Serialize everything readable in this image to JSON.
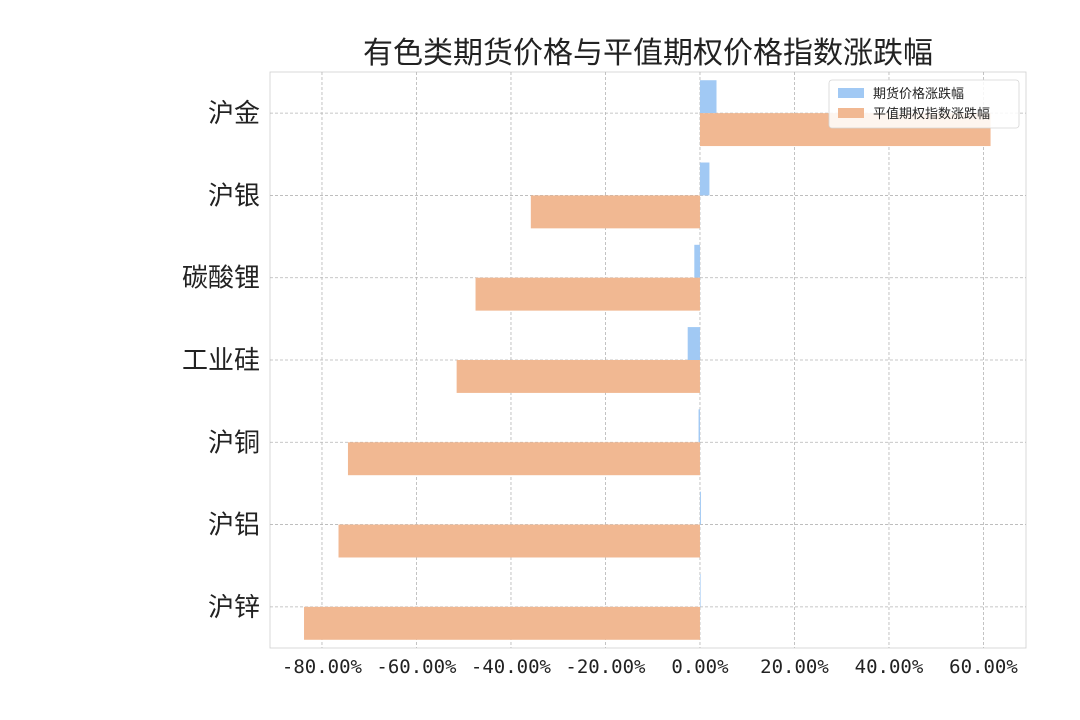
{
  "chart_data": {
    "type": "bar",
    "orientation": "horizontal",
    "title": "有色类期货价格与平值期权价格指数涨跌幅",
    "xlabel": "",
    "ylabel": "",
    "categories": [
      "沪金",
      "沪银",
      "碳酸锂",
      "工业硅",
      "沪铜",
      "沪铝",
      "沪锌"
    ],
    "series": [
      {
        "name": "期货价格涨跌幅",
        "color": "#a1c9f4",
        "values": [
          3.5,
          2.0,
          -1.2,
          -2.6,
          -0.3,
          0.2,
          0.1
        ]
      },
      {
        "name": "平值期权指数涨跌幅",
        "color": "#f1b892",
        "values": [
          61.5,
          -35.8,
          -47.5,
          -51.5,
          -74.5,
          -76.5,
          -83.8
        ]
      }
    ],
    "xlim": [
      -91,
      69
    ],
    "xticks": [
      -80,
      -60,
      -40,
      -20,
      0,
      20,
      40,
      60
    ],
    "xtick_labels": [
      "-80.00%",
      "-60.00%",
      "-40.00%",
      "-20.00%",
      "0.00%",
      "20.00%",
      "40.00%",
      "60.00%"
    ],
    "grid": true,
    "legend_position": "top-right"
  }
}
